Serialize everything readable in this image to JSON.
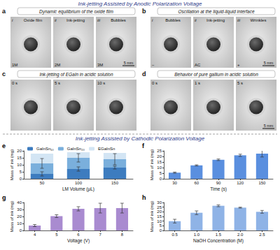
{
  "headers": {
    "anodic": "Ink-jetting Assisted by Anodic Polarization Voltage",
    "cathodic": "Ink-jetting Assisted by Cathodic Polarization Voltage"
  },
  "photo_panels": [
    {
      "panel": "a",
      "title": "Dynamic equilibrium of the oxide film",
      "images": [
        {
          "index": "i",
          "caption": "Oxide film",
          "label": "1M"
        },
        {
          "index": "ii",
          "caption": "Ink-jetting",
          "label": "2M"
        },
        {
          "index": "iii",
          "caption": "Bubbles",
          "label": "3M",
          "scale_bar": "5 mm"
        }
      ]
    },
    {
      "panel": "b",
      "title": "Oscillation at the liquid-liquid interface",
      "images": [
        {
          "index": "i",
          "caption": "Bubbles",
          "label": "−"
        },
        {
          "index": "ii",
          "caption": "Ink-jetting",
          "label": "AC"
        },
        {
          "index": "iii",
          "caption": "Wrinkles",
          "label": "+",
          "scale_bar": "5 mm"
        }
      ]
    },
    {
      "panel": "c",
      "title": "Ink-jetting of EGaIn in acidic solution",
      "images": [
        {
          "time": "0 s"
        },
        {
          "time": "5 s"
        },
        {
          "time": "10 s"
        }
      ]
    },
    {
      "panel": "d",
      "title": "Behavior of pure gallium in acidic solution",
      "images": [
        {
          "time": "0 s"
        },
        {
          "time": "1 s"
        },
        {
          "time": "5 s",
          "scale_bar": "5 mm"
        }
      ]
    }
  ],
  "chart_data": [
    {
      "panel": "e",
      "type": "bar",
      "x_label": "LM Volume (μL)",
      "y_label": "Mass of ink (mg)",
      "categories": [
        "50",
        "100",
        "150"
      ],
      "series": [
        {
          "name": "GaInSn₁₀",
          "color": "#3d7cbf",
          "values": [
            3.5,
            7,
            8
          ],
          "errors": [
            1.5,
            1.5,
            1
          ]
        },
        {
          "name": "GaInSn₂₀",
          "color": "#7aafdc",
          "values": [
            11,
            15,
            14
          ],
          "errors": [
            3.5,
            3,
            4
          ]
        },
        {
          "name": "EGaInSn",
          "color": "#d3e5f4",
          "values": [
            18,
            19,
            18.5
          ]
        }
      ],
      "ylim": [
        0,
        20
      ],
      "yticks": [
        0,
        5,
        10,
        15,
        20
      ],
      "legend": "top",
      "grid": false
    },
    {
      "panel": "f",
      "type": "bar",
      "x_label": "Time (s)",
      "y_label": "Mass of ink (mg)",
      "categories": [
        "30",
        "60",
        "90",
        "120",
        "150"
      ],
      "series": [
        {
          "color": "#5a8fdf",
          "values": [
            5.5,
            12,
            17,
            21,
            22.5
          ],
          "errors": [
            0.5,
            0.5,
            0.7,
            1,
            3
          ]
        }
      ],
      "ylim": [
        0,
        25
      ],
      "yticks": [
        0,
        5,
        10,
        15,
        20,
        25
      ],
      "grid": false
    },
    {
      "panel": "g",
      "type": "bar",
      "x_label": "Voltage (V)",
      "y_label": "Mass of ink (mg)",
      "categories": [
        "4",
        "5",
        "6",
        "7",
        "8"
      ],
      "series": [
        {
          "color": "#a98bd0",
          "values": [
            7,
            20.5,
            31,
            32,
            32
          ],
          "errors": [
            1.5,
            2,
            3,
            7,
            7
          ]
        }
      ],
      "ylim": [
        0,
        40
      ],
      "yticks": [
        0,
        10,
        20,
        30,
        40
      ],
      "grid": false
    },
    {
      "panel": "h",
      "type": "bar",
      "x_label": "NaOH Concentration (M)",
      "y_label": "Mass of ink (mg)",
      "categories": [
        "0.5",
        "1.0",
        "1.5",
        "2.0",
        "2.5"
      ],
      "series": [
        {
          "color": "#8fb3e6",
          "values": [
            10,
            19,
            26.5,
            24.5,
            20
          ],
          "errors": [
            2,
            2,
            1,
            0.5,
            1.5
          ]
        }
      ],
      "ylim": [
        0,
        30
      ],
      "yticks": [
        0,
        5,
        10,
        15,
        20,
        25,
        30
      ],
      "grid": false
    }
  ]
}
